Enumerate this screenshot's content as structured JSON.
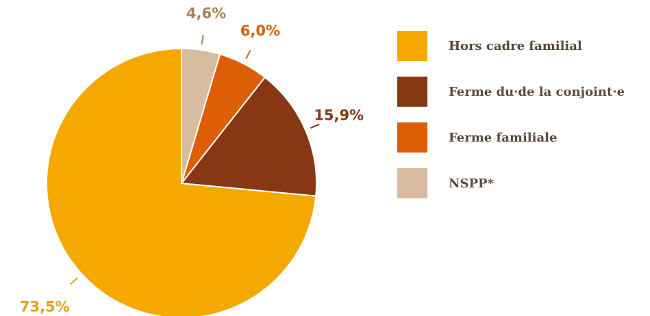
{
  "chart_data": {
    "type": "pie",
    "categories": [
      "Hors cadre familial",
      "Ferme du·de la conjoint·e",
      "Ferme familiale",
      "NSPP*"
    ],
    "values": [
      73.5,
      15.9,
      6.0,
      4.6
    ],
    "value_labels": [
      "73,5%",
      "15,9%",
      "6,0%",
      "4,6%"
    ],
    "colors": [
      "#f5a800",
      "#873714",
      "#dc5f05",
      "#d7bca0"
    ],
    "label_colors": [
      "#e3a21a",
      "#873714",
      "#dc5f05",
      "#a6825a"
    ],
    "legend": "right"
  }
}
